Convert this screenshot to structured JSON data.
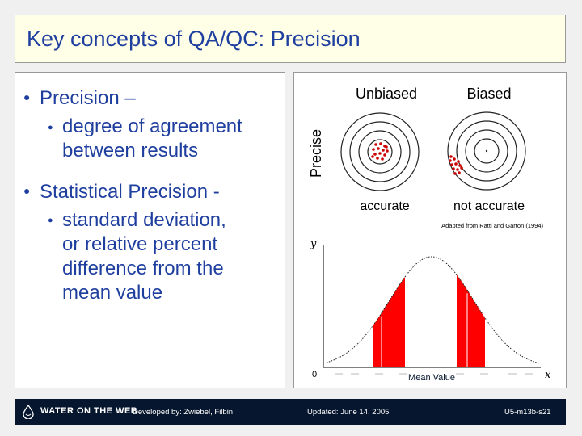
{
  "title": "Key concepts of QA/QC:  Precision",
  "bullets": {
    "b1_label": "Precision –",
    "b1_sub": [
      "degree of agreement",
      "between results"
    ],
    "b2_label": "Statistical Precision -",
    "b2_sub": [
      "standard deviation,",
      "or relative percent",
      "difference from the",
      "mean value"
    ]
  },
  "figure": {
    "col_unbiased": "Unbiased",
    "col_biased": "Biased",
    "row_precise": "Precise",
    "label_accurate": "accurate",
    "label_not_accurate": "not accurate",
    "credit": "Adapted from Ratti and Garton (1994)",
    "axis_y": "y",
    "axis_x": "x",
    "axis_origin": "0",
    "mean_label": "Mean Value",
    "fill_color": "#ff0000",
    "dot_color": "#cc0000"
  },
  "footer": {
    "logo": "WATER ON THE WEB",
    "developed": "Developed by:  Zwiebel, Filbin",
    "updated": "Updated:  June 14, 2005",
    "code": "U5-m13b-s21"
  }
}
